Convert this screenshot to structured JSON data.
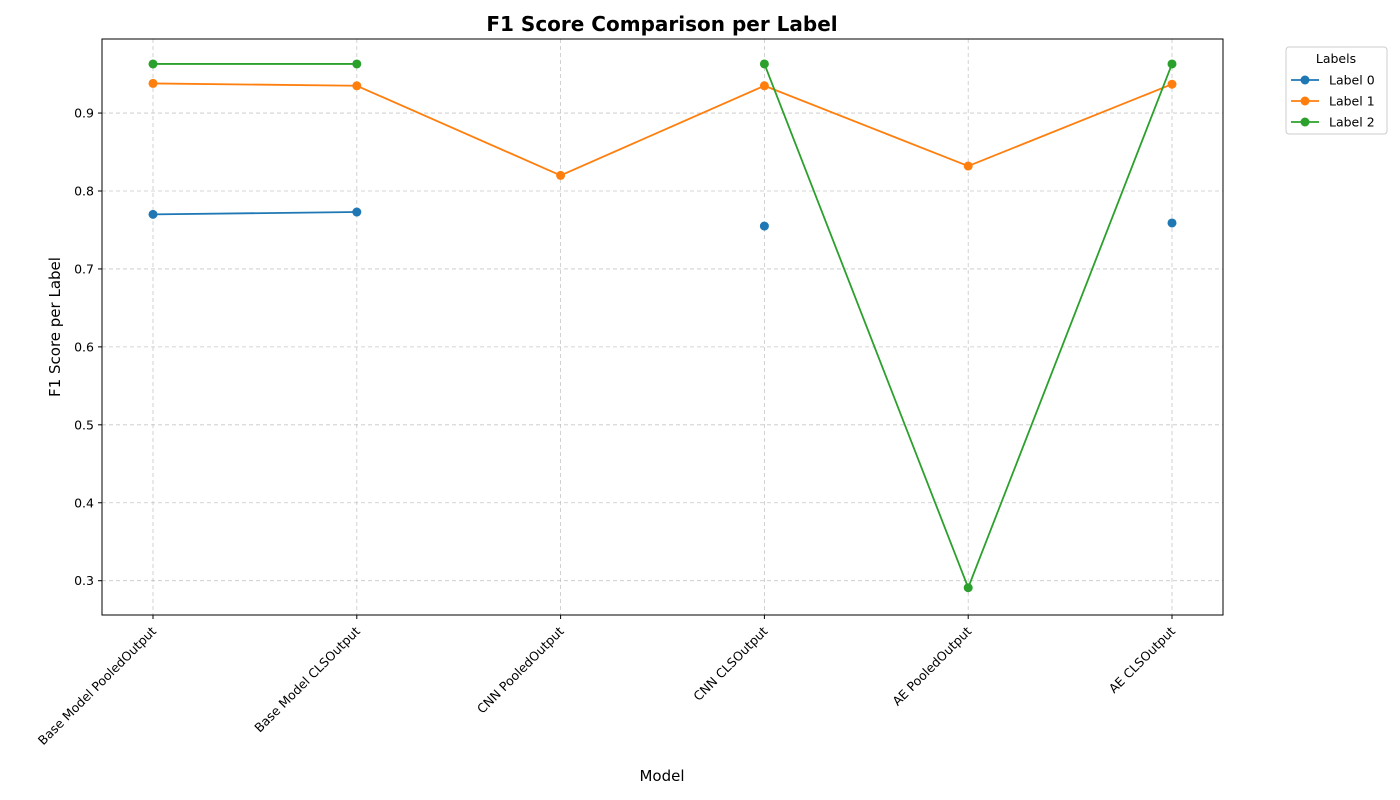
{
  "chart_data": {
    "type": "line",
    "title": "F1 Score Comparison per Label",
    "xlabel": "Model",
    "ylabel": "F1 Score per Label",
    "categories": [
      "Base Model PooledOutput",
      "Base Model CLSOutput",
      "CNN PooledOutput",
      "CNN CLSOutput",
      "AE PooledOutput",
      "AE CLSOutput"
    ],
    "ylim": [
      0.256,
      0.995
    ],
    "yticks": [
      0.3,
      0.4,
      0.5,
      0.6,
      0.7,
      0.8,
      0.9
    ],
    "grid": true,
    "legend": {
      "title": "Labels",
      "placement": "outside-top-right"
    },
    "series": [
      {
        "name": "Label 0",
        "color": "#1f77b4",
        "values": [
          0.77,
          0.773,
          null,
          0.755,
          null,
          0.759
        ]
      },
      {
        "name": "Label 1",
        "color": "#ff7f0e",
        "values": [
          0.938,
          0.935,
          0.82,
          0.935,
          0.832,
          0.937
        ]
      },
      {
        "name": "Label 2",
        "color": "#2ca02c",
        "values": [
          0.963,
          0.963,
          null,
          0.963,
          0.291,
          0.963
        ]
      }
    ]
  }
}
